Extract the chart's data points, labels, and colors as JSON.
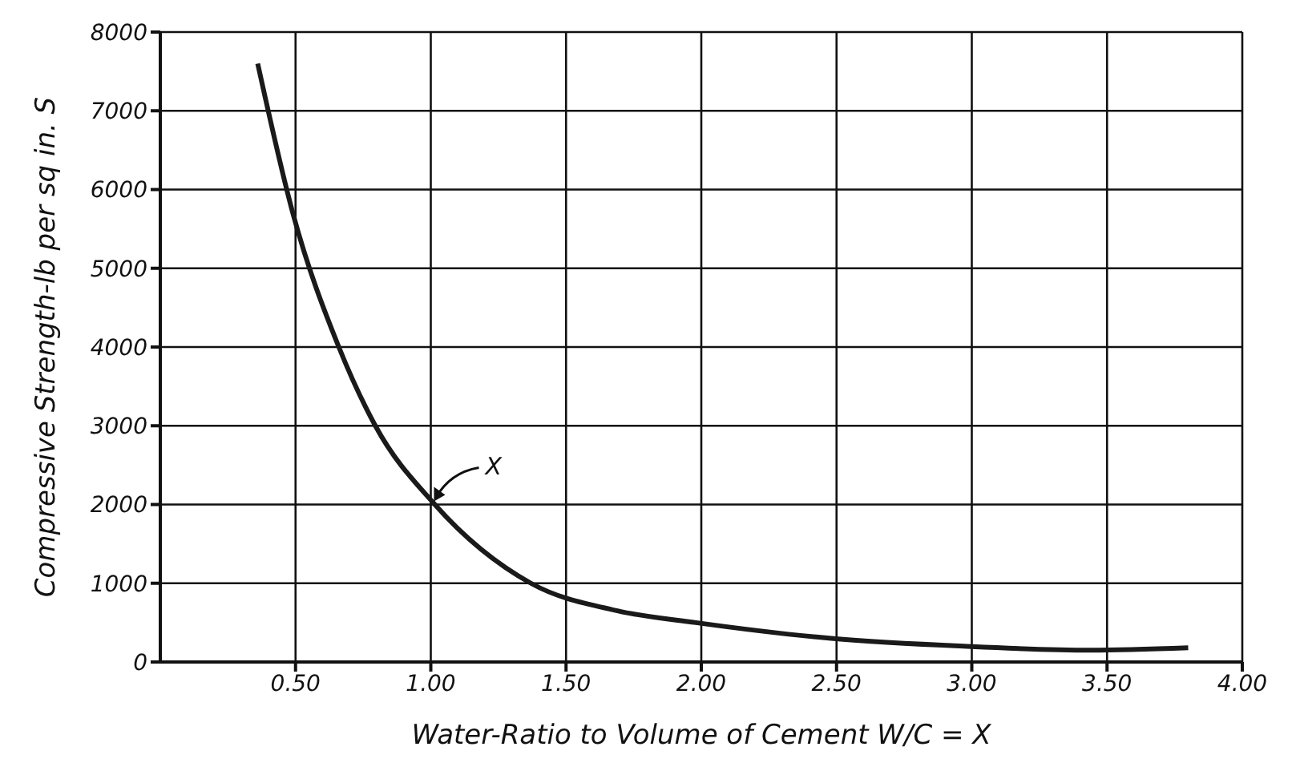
{
  "chart_data": {
    "type": "line",
    "xlabel": "Water-Ratio to Volume of Cement W/C = X",
    "ylabel": "Compressive Strength-lb per sq in. S",
    "x": [
      0.36,
      0.49,
      0.66,
      0.795,
      1.015,
      1.37,
      1.69,
      1.98,
      2.48,
      2.97,
      3.44,
      3.8
    ],
    "series": [
      {
        "color": "#1a1a1a",
        "values": [
          7600,
          5700,
          4000,
          3000,
          2000,
          1000,
          650,
          500,
          300,
          200,
          150,
          180
        ]
      }
    ],
    "xlim": [
      0,
      4
    ],
    "xticks": [
      {
        "value": 0.5,
        "label": "0.50"
      },
      {
        "value": 1,
        "label": "1.00"
      },
      {
        "value": 1.5,
        "label": "1.50"
      },
      {
        "value": 2,
        "label": "2.00"
      },
      {
        "value": 2.5,
        "label": "2.50"
      },
      {
        "value": 3,
        "label": "3.00"
      },
      {
        "value": 3.5,
        "label": "3.50"
      },
      {
        "value": 4,
        "label": "4.00"
      }
    ],
    "ylim": [
      0,
      8000
    ],
    "yticks": [
      0,
      1000,
      2000,
      3000,
      4000,
      5000,
      6000,
      7000,
      8000
    ],
    "annotations": [
      {
        "text": "X",
        "x": 1.0,
        "y": 2000
      }
    ],
    "grid": true,
    "marker": "none",
    "line_style": "solid"
  }
}
